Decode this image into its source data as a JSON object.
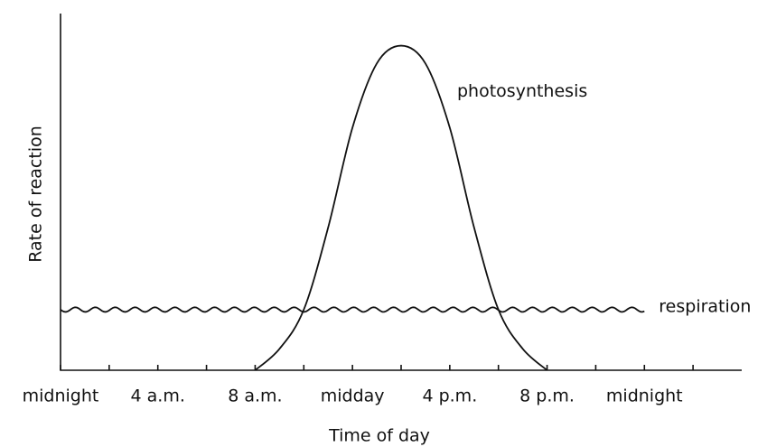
{
  "chart_data": {
    "type": "line",
    "x_label": "Time of day",
    "y_label": "Rate of reaction",
    "xlim": [
      0,
      28
    ],
    "ylim": [
      0,
      100
    ],
    "xticks": [
      {
        "value": 0,
        "label": "midnight"
      },
      {
        "value": 4,
        "label": "4 a.m."
      },
      {
        "value": 8,
        "label": "8 a.m."
      },
      {
        "value": 12,
        "label": "midday"
      },
      {
        "value": 16,
        "label": "4 p.m."
      },
      {
        "value": 20,
        "label": "8 p.m."
      },
      {
        "value": 24,
        "label": "midnight"
      }
    ],
    "minor_xticks": [
      2,
      6,
      10,
      14,
      18,
      22,
      26
    ],
    "series": [
      {
        "name": "photosynthesis",
        "color": "#111111",
        "line_style": "smooth",
        "x": [
          8,
          9,
          10,
          11,
          12,
          13,
          14,
          15,
          16,
          17,
          18,
          19,
          20
        ],
        "values": [
          0,
          6,
          17,
          40,
          68,
          86,
          91,
          86,
          68,
          40,
          17,
          6,
          0
        ]
      },
      {
        "name": "respiration",
        "color": "#111111",
        "line_style": "wavy",
        "x": [
          0,
          24
        ],
        "values": [
          17,
          17
        ]
      }
    ]
  }
}
